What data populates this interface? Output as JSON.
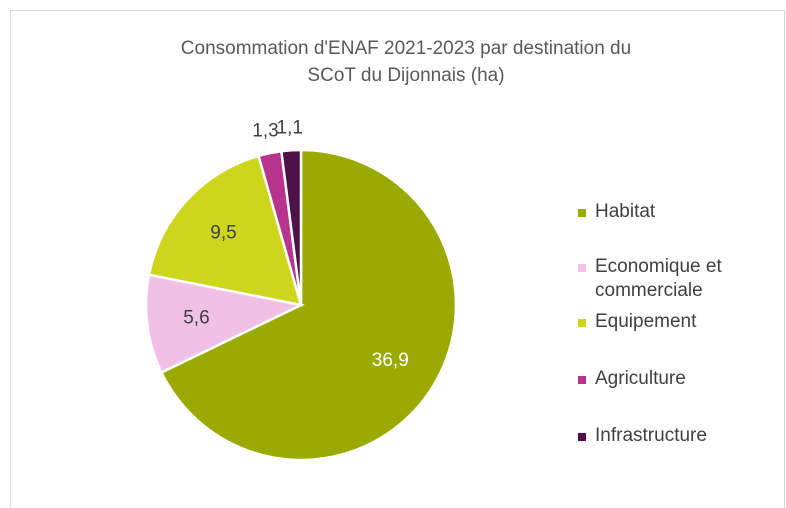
{
  "chart_data": {
    "type": "pie",
    "title": [
      "Consommation d'ENAF 2021-2023 par destination du",
      "SCoT du Dijonnais (ha)"
    ],
    "categories": [
      "Habitat",
      "Economique et commerciale",
      "Equipement",
      "Agriculture",
      "Infrastructure"
    ],
    "values": [
      36.9,
      5.6,
      9.5,
      1.3,
      1.1
    ],
    "value_labels": [
      "36,9",
      "5,6",
      "9,5",
      "1,3",
      "1,1"
    ],
    "colors": [
      "#9aaa00",
      "#f0c0e6",
      "#cdd61c",
      "#b8338d",
      "#4e1248"
    ],
    "label_colors": [
      "#ffffff",
      "#404040",
      "#404040",
      "#404040",
      "#404040"
    ],
    "legend": "right"
  }
}
